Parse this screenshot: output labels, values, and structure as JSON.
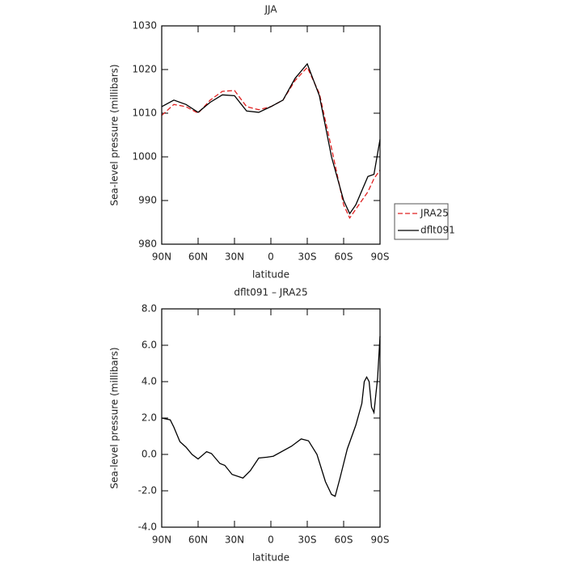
{
  "chart_data": [
    {
      "type": "line",
      "title": "JJA",
      "xlabel": "latitude",
      "ylabel": "Sea-level pressure (millibars)",
      "x": [
        90,
        80,
        70,
        60,
        50,
        40,
        30,
        20,
        10,
        0,
        -10,
        -20,
        -30,
        -40,
        -50,
        -60,
        -65,
        -70,
        -80,
        -85,
        -90
      ],
      "series": [
        {
          "name": "JRA25",
          "color": "#e02020",
          "dash": true,
          "values": [
            1009.5,
            1012,
            1011.5,
            1010,
            1013,
            1015,
            1015.2,
            1011.5,
            1010.8,
            1011.5,
            1013,
            1017.5,
            1020.5,
            1014.5,
            1002,
            989,
            986,
            988,
            992,
            995,
            997
          ]
        },
        {
          "name": "dflt091",
          "color": "#000000",
          "dash": false,
          "values": [
            1011.5,
            1013,
            1012,
            1010.2,
            1012.5,
            1014.2,
            1014,
            1010.5,
            1010.2,
            1011.5,
            1013,
            1018,
            1021.3,
            1014,
            1000,
            990,
            987,
            989,
            995.5,
            996,
            1004
          ]
        }
      ],
      "xlim": [
        90,
        -90
      ],
      "xticks": [
        {
          "value": 90,
          "label": "90N"
        },
        {
          "value": 60,
          "label": "60N"
        },
        {
          "value": 30,
          "label": "30N"
        },
        0,
        {
          "value": -30,
          "label": "30S"
        },
        {
          "value": -60,
          "label": "60S"
        },
        {
          "value": -90,
          "label": "90S"
        }
      ],
      "ylim": [
        980,
        1030
      ],
      "yticks": [
        980,
        990,
        1000,
        1010,
        1020,
        1030
      ],
      "legend": "right"
    },
    {
      "type": "line",
      "title": "dflt091 – JRA25",
      "xlabel": "latitude",
      "ylabel": "Sea-level pressure (millibars)",
      "x": [
        90,
        83,
        80,
        75,
        70,
        65,
        60,
        53,
        49,
        42,
        38,
        32,
        23,
        17,
        10,
        3,
        -2,
        -17,
        -25,
        -31,
        -38,
        -45,
        -50,
        -53,
        -57,
        -63,
        -70,
        -75,
        -77,
        -79,
        -81,
        -83,
        -85,
        -88,
        -90
      ],
      "series": [
        {
          "name": "dflt091 – JRA25",
          "color": "#000000",
          "dash": false,
          "values": [
            2.0,
            1.9,
            1.5,
            0.7,
            0.4,
            0.0,
            -0.25,
            0.15,
            0.05,
            -0.5,
            -0.6,
            -1.1,
            -1.3,
            -0.9,
            -0.2,
            -0.15,
            -0.1,
            0.45,
            0.85,
            0.75,
            0,
            -1.5,
            -2.2,
            -2.3,
            -1.3,
            0.3,
            1.6,
            2.8,
            4.0,
            4.25,
            4.0,
            2.6,
            2.3,
            4.2,
            6.5
          ]
        }
      ],
      "xlim": [
        90,
        -90
      ],
      "xticks": [
        {
          "value": 90,
          "label": "90N"
        },
        {
          "value": 60,
          "label": "60N"
        },
        {
          "value": 30,
          "label": "30N"
        },
        0,
        {
          "value": -30,
          "label": "30S"
        },
        {
          "value": -60,
          "label": "60S"
        },
        {
          "value": -90,
          "label": "90S"
        }
      ],
      "ylim": [
        -4,
        8
      ],
      "yticks": [
        {
          "value": -4,
          "label": "-4.0"
        },
        {
          "value": -2,
          "label": "-2.0"
        },
        {
          "value": 0,
          "label": "0.0"
        },
        {
          "value": 2,
          "label": "2.0"
        },
        {
          "value": 4,
          "label": "4.0"
        },
        {
          "value": 6,
          "label": "6.0"
        },
        {
          "value": 8,
          "label": "8.0"
        }
      ]
    }
  ]
}
